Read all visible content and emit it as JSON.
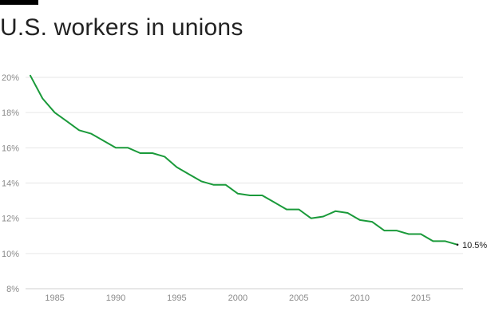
{
  "chart_data": {
    "type": "line",
    "title": "U.S. workers in unions",
    "xlabel": "",
    "ylabel": "",
    "xlim": [
      1982.5,
      2018.8
    ],
    "ylim": [
      8,
      20.4
    ],
    "grid": true,
    "x_ticks": [
      1985,
      1990,
      1995,
      2000,
      2005,
      2010,
      2015
    ],
    "x_tick_labels": [
      "1985",
      "1990",
      "1995",
      "2000",
      "2005",
      "2010",
      "2015"
    ],
    "y_ticks": [
      8,
      10,
      12,
      14,
      16,
      18,
      20
    ],
    "y_tick_labels": [
      "8%",
      "10%",
      "12%",
      "14%",
      "16%",
      "18%",
      "20%"
    ],
    "line_color": "#1a9a3a",
    "series": [
      {
        "x": [
          1983,
          1984,
          1985,
          1986,
          1987,
          1988,
          1989,
          1990,
          1991,
          1992,
          1993,
          1994,
          1995,
          1996,
          1997,
          1998,
          1999,
          2000,
          2001,
          2002,
          2003,
          2004,
          2005,
          2006,
          2007,
          2008,
          2009,
          2010,
          2011,
          2012,
          2013,
          2014,
          2015,
          2016,
          2017,
          2018
        ],
        "values": [
          20.1,
          18.8,
          18.0,
          17.5,
          17.0,
          16.8,
          16.4,
          16.0,
          16.0,
          15.7,
          15.7,
          15.5,
          14.9,
          14.5,
          14.1,
          13.9,
          13.9,
          13.4,
          13.3,
          13.3,
          12.9,
          12.5,
          12.5,
          12.0,
          12.1,
          12.4,
          12.3,
          11.9,
          11.8,
          11.3,
          11.3,
          11.1,
          11.1,
          10.7,
          10.7,
          10.5
        ]
      }
    ],
    "end_label": "10.5%"
  }
}
